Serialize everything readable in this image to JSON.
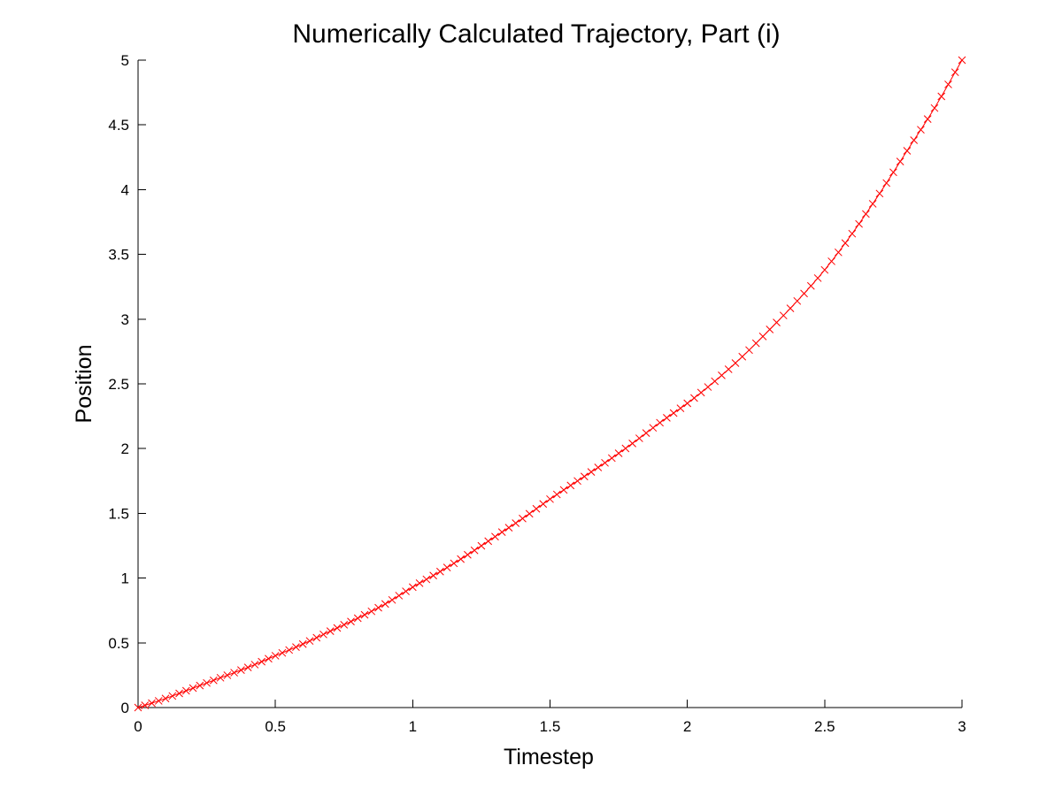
{
  "chart_data": {
    "type": "line",
    "title": "Numerically Calculated Trajectory, Part (i)",
    "xlabel": "Timestep",
    "ylabel": "Position",
    "xlim": [
      0,
      3
    ],
    "ylim": [
      0,
      5
    ],
    "xticks": [
      "0",
      "0.5",
      "1",
      "1.5",
      "2",
      "2.5",
      "3"
    ],
    "yticks": [
      "0",
      "0.5",
      "1",
      "1.5",
      "2",
      "2.5",
      "3",
      "3.5",
      "4",
      "4.5",
      "5"
    ],
    "grid": false,
    "legend": "none",
    "marker": "x",
    "series_color": "#ff0000",
    "axis_color": "#000000",
    "series": [
      {
        "x": [
          0,
          0.1,
          0.2,
          0.3,
          0.4,
          0.5,
          0.6,
          0.7,
          0.8,
          0.9,
          1.0,
          1.1,
          1.2,
          1.3,
          1.4,
          1.5,
          1.6,
          1.7,
          1.8,
          1.9,
          2.0,
          2.1,
          2.2,
          2.3,
          2.4,
          2.5,
          2.6,
          2.7,
          2.8,
          2.9,
          3.0
        ],
        "y": [
          0,
          0.07,
          0.15,
          0.23,
          0.31,
          0.4,
          0.49,
          0.59,
          0.69,
          0.8,
          0.93,
          1.05,
          1.18,
          1.32,
          1.46,
          1.61,
          1.75,
          1.89,
          2.04,
          2.2,
          2.35,
          2.52,
          2.71,
          2.92,
          3.14,
          3.38,
          3.66,
          3.97,
          4.3,
          4.63,
          5.0
        ]
      }
    ]
  }
}
